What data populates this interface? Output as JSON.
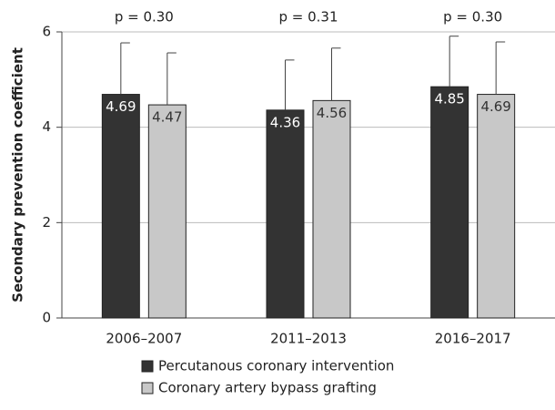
{
  "chart_data": {
    "type": "bar",
    "ylabel": "Secondary prevention coefficient",
    "categories": [
      "2006–2007",
      "2011–2013",
      "2016–2017"
    ],
    "annotations": [
      "p = 0.30",
      "p = 0.31",
      "p = 0.30"
    ],
    "series": [
      {
        "name": "Percutanous coronary intervention",
        "color": "#333333",
        "label_color": "#ffffff",
        "values": [
          4.69,
          4.36,
          4.85
        ],
        "errors": [
          1.08,
          1.05,
          1.06
        ]
      },
      {
        "name": "Coronary artery bypass grafting",
        "color": "#c8c8c8",
        "label_color": "#333333",
        "values": [
          4.47,
          4.56,
          4.69
        ],
        "errors": [
          1.09,
          1.1,
          1.1
        ]
      }
    ],
    "ylim": [
      0,
      6
    ],
    "yticks": [
      0,
      2,
      4,
      6
    ],
    "grid": true,
    "legend": "bottom"
  }
}
